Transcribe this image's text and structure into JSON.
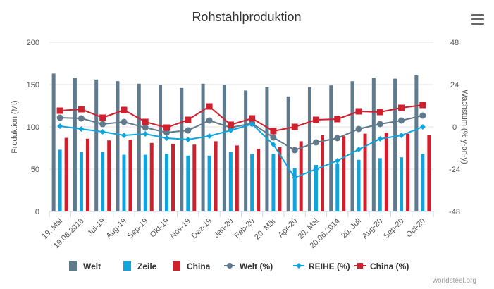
{
  "menu_icon": "hamburger-menu-icon",
  "credit": "worldsteel.org",
  "chart_data": {
    "type": "bar",
    "title": "Rohstahlproduktion",
    "ylabel": "Produktion (Mt)",
    "y2label": "Wachstum (% y-on-y)",
    "ylim": [
      0,
      200
    ],
    "y2lim": [
      -48,
      48
    ],
    "yticks": [
      "0",
      "50",
      "100",
      "150",
      "200"
    ],
    "y2ticks": [
      "-48",
      "-24",
      "0",
      "24",
      "48"
    ],
    "grid": true,
    "legend_position": "bottom",
    "categories": [
      "19. Mai",
      "19.06.2018",
      "Jul-19",
      "Aug-19",
      "Sep-19",
      "Okt-19",
      "Nov-19",
      "Dez-19",
      "Jan-20",
      "Feb-20",
      "20. Mär",
      "Apr-20",
      "20. Mai",
      "20.06.2014",
      "20. Juli",
      "Aug-20",
      "Sep-20",
      "Oct-20"
    ],
    "series": [
      {
        "name": "Welt",
        "type": "bar",
        "axis": "left",
        "color": "#5f7a8c",
        "values": [
          163,
          158,
          156,
          154,
          151,
          150,
          146,
          151,
          150,
          143,
          147,
          136,
          147,
          149,
          154,
          158,
          157,
          161
        ]
      },
      {
        "name": "Zeile",
        "type": "bar",
        "axis": "left",
        "color": "#0ea5de",
        "values": [
          73,
          70,
          70,
          67,
          67,
          68,
          66,
          66,
          70,
          68,
          68,
          51,
          55,
          57,
          61,
          63,
          64,
          68
        ]
      },
      {
        "name": "China",
        "type": "bar",
        "axis": "left",
        "color": "#d0202e",
        "values": [
          87,
          86,
          84,
          85,
          81,
          80,
          79,
          83,
          78,
          74,
          76,
          83,
          90,
          89,
          92,
          93,
          92,
          90
        ]
      },
      {
        "name": "Welt (%)",
        "type": "line",
        "axis": "right",
        "color": "#5f7a8c",
        "marker": "circle",
        "values": [
          5.2,
          4.8,
          1.6,
          2.8,
          -0.4,
          -3.2,
          -2,
          3.6,
          -0.4,
          2,
          -6,
          -13.2,
          -8.8,
          -6.4,
          -1.2,
          1.6,
          3.6,
          6.4
        ]
      },
      {
        "name": "REIHE (%)",
        "type": "line",
        "axis": "right",
        "color": "#0ea5de",
        "marker": "diamond",
        "values": [
          0.4,
          -1.2,
          -2.8,
          -4.8,
          -4,
          -6.4,
          -7.2,
          -5.2,
          -2,
          1.6,
          -10,
          -28.8,
          -24,
          -19.2,
          -12.8,
          -6.8,
          -4.8,
          0
        ]
      },
      {
        "name": "China (%)",
        "type": "line",
        "axis": "right",
        "color": "#d0202e",
        "marker": "square",
        "values": [
          9.2,
          10,
          5.2,
          9.6,
          2.8,
          -0.4,
          4,
          11.6,
          1.2,
          4.8,
          -2.4,
          0,
          4,
          4.4,
          8.8,
          8.4,
          10.8,
          12.4
        ]
      }
    ]
  }
}
